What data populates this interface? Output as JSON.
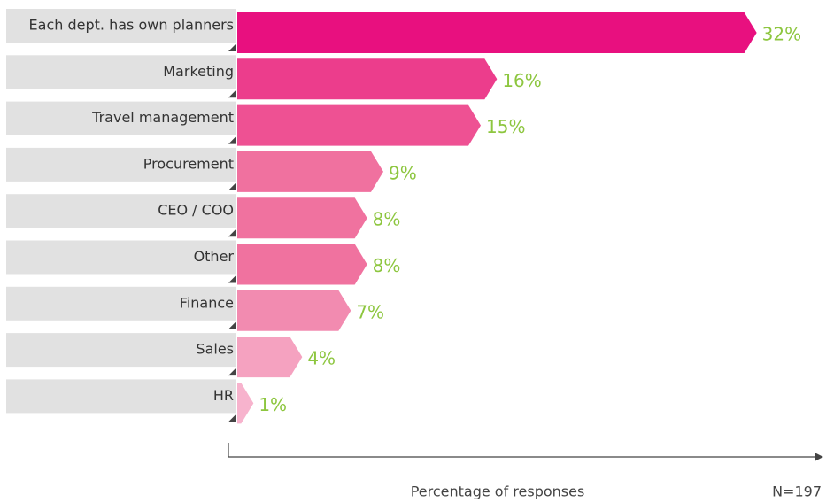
{
  "chart_data": {
    "type": "arrow-bar",
    "categories": [
      "Each dept. has own planners",
      "Marketing",
      "Travel management",
      "Procurement",
      "CEO / COO",
      "Other",
      "Finance",
      "Sales",
      "HR"
    ],
    "values": [
      32,
      16,
      15,
      9,
      8,
      8,
      7,
      4,
      1
    ],
    "value_labels": [
      "32%",
      "16%",
      "15%",
      "9%",
      "8%",
      "8%",
      "7%",
      "4%",
      "1%"
    ],
    "colors": [
      "#e8107f",
      "#ec3d8c",
      "#ee5193",
      "#f0719f",
      "#f0729f",
      "#f0729f",
      "#f28bb0",
      "#f5a2c0",
      "#f7b3cd"
    ],
    "label_color": "#8dc63f",
    "xlim": [
      0,
      36
    ],
    "x_axis_label": "Percentage of responses",
    "note": "N=197"
  }
}
